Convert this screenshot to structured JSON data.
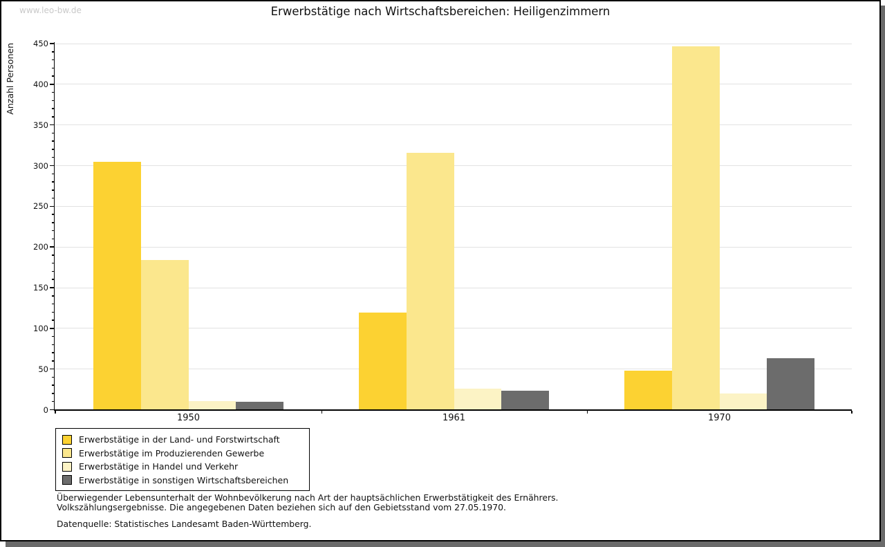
{
  "watermark": "www.leo-bw.de",
  "title": "Erwerbstätige nach Wirtschaftsbereichen: Heiligenzimmern",
  "chart_data": {
    "type": "bar",
    "categories": [
      "1950",
      "1961",
      "1970"
    ],
    "series": [
      {
        "name": "Erwerbstätige in der Land- und Forstwirtschaft",
        "color": "#FCD232",
        "values": [
          305,
          119,
          48
        ]
      },
      {
        "name": "Erwerbstätige im Produzierenden Gewerbe",
        "color": "#FBE78D",
        "values": [
          184,
          316,
          447
        ]
      },
      {
        "name": "Erwerbstätige in Handel und Verkehr",
        "color": "#FCF3C5",
        "values": [
          11,
          26,
          20
        ]
      },
      {
        "name": "Erwerbstätige in sonstigen Wirtschaftsbereichen",
        "color": "#6C6C6C",
        "values": [
          10,
          23,
          63
        ]
      }
    ],
    "title": "Erwerbstätige nach Wirtschaftsbereichen: Heiligenzimmern",
    "xlabel": "",
    "ylabel": "Anzahl Personen",
    "ylim": [
      0,
      450
    ],
    "ytick_major": 50,
    "ytick_minor": 10,
    "grid": true,
    "legend_position": "bottom-left"
  },
  "footnotes": {
    "line1": "Überwiegender Lebensunterhalt der Wohnbevölkerung nach Art der hauptsächlichen Erwerbstätigkeit des Ernährers.",
    "line2": "Volkszählungsergebnisse. Die angegebenen Daten beziehen sich auf den Gebietsstand vom 27.05.1970.",
    "source": "Datenquelle: Statistisches Landesamt Baden-Württemberg."
  },
  "colors": {
    "grid": "#E2E2E2",
    "axis": "#000000",
    "watermark": "#C9C9C9",
    "text": "#111111",
    "shadow": "#6A6A6A"
  }
}
